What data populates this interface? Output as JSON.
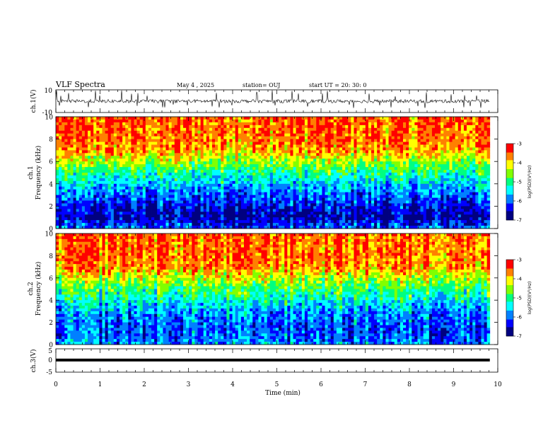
{
  "header": {
    "title": "VLF Spectra",
    "date": "May 4 , 2025",
    "station": "station= OUJ",
    "start": "start  UT  =   20: 30: 0"
  },
  "colors": {
    "spectrogram_scale": [
      "#000080",
      "#0000ff",
      "#0080ff",
      "#00ffff",
      "#00ff80",
      "#80ff00",
      "#ffff00",
      "#ff8000",
      "#ff0000"
    ],
    "trace": "#000000"
  },
  "chart_data": [
    {
      "type": "line",
      "panel": "ch1-waveform",
      "ylabel": "ch.1(V)",
      "ylim": [
        -10,
        10
      ],
      "yticks": [
        10,
        -10
      ],
      "xlim": [
        0,
        10
      ],
      "baseline_approx": 0,
      "note_values": "noisy trace around 0 V with spikes reaching about +10 and -5"
    },
    {
      "type": "heatmap",
      "panel": "ch1-spectrogram",
      "ylabel_line1": "ch.1",
      "ylabel_line2": "Frequency  (kHz)",
      "ylim": [
        0,
        10
      ],
      "yticks": [
        0,
        2,
        4,
        6,
        8,
        10
      ],
      "xlim": [
        0,
        10
      ],
      "colorbar": {
        "label": "log(PSD)(V²/Hz)",
        "range": [
          -7,
          -3
        ],
        "ticks": [
          "-3",
          "-4",
          "-5",
          "-6",
          "-7"
        ]
      },
      "profile_freq_khz": [
        0,
        1,
        2,
        3,
        4,
        5,
        6,
        7,
        8,
        10
      ],
      "profile_log_psd": [
        -6.0,
        -6.7,
        -6.4,
        -6.0,
        -5.6,
        -5.1,
        -4.5,
        -3.8,
        -3.6,
        -3.5
      ]
    },
    {
      "type": "heatmap",
      "panel": "ch2-spectrogram",
      "ylabel_line1": "ch.2",
      "ylabel_line2": "Frequency  (kHz)",
      "ylim": [
        0,
        10
      ],
      "yticks": [
        0,
        2,
        4,
        6,
        8,
        10
      ],
      "xlim": [
        0,
        10
      ],
      "colorbar": {
        "label": "log(PSD)(V²/Hz)",
        "range": [
          -7,
          -3
        ],
        "ticks": [
          "-3",
          "-4",
          "-5",
          "-6",
          "-7"
        ]
      },
      "profile_freq_khz": [
        0,
        1,
        2,
        3,
        4,
        5,
        6,
        7,
        8,
        10
      ],
      "profile_log_psd": [
        -5.8,
        -6.1,
        -6.0,
        -5.8,
        -5.3,
        -4.9,
        -4.3,
        -3.7,
        -3.6,
        -3.5
      ]
    },
    {
      "type": "line",
      "panel": "ch3-waveform",
      "ylabel": "ch.3(V)",
      "ylim": [
        -5,
        5
      ],
      "yticks": [
        5,
        0,
        -5
      ],
      "xlim": [
        0,
        10
      ],
      "baseline_approx": 0.2
    }
  ],
  "xaxis": {
    "label": "Time  (min)",
    "ticks": [
      "0",
      "1",
      "2",
      "3",
      "4",
      "5",
      "6",
      "7",
      "8",
      "9",
      "10"
    ],
    "data_end_min": 9.82
  }
}
